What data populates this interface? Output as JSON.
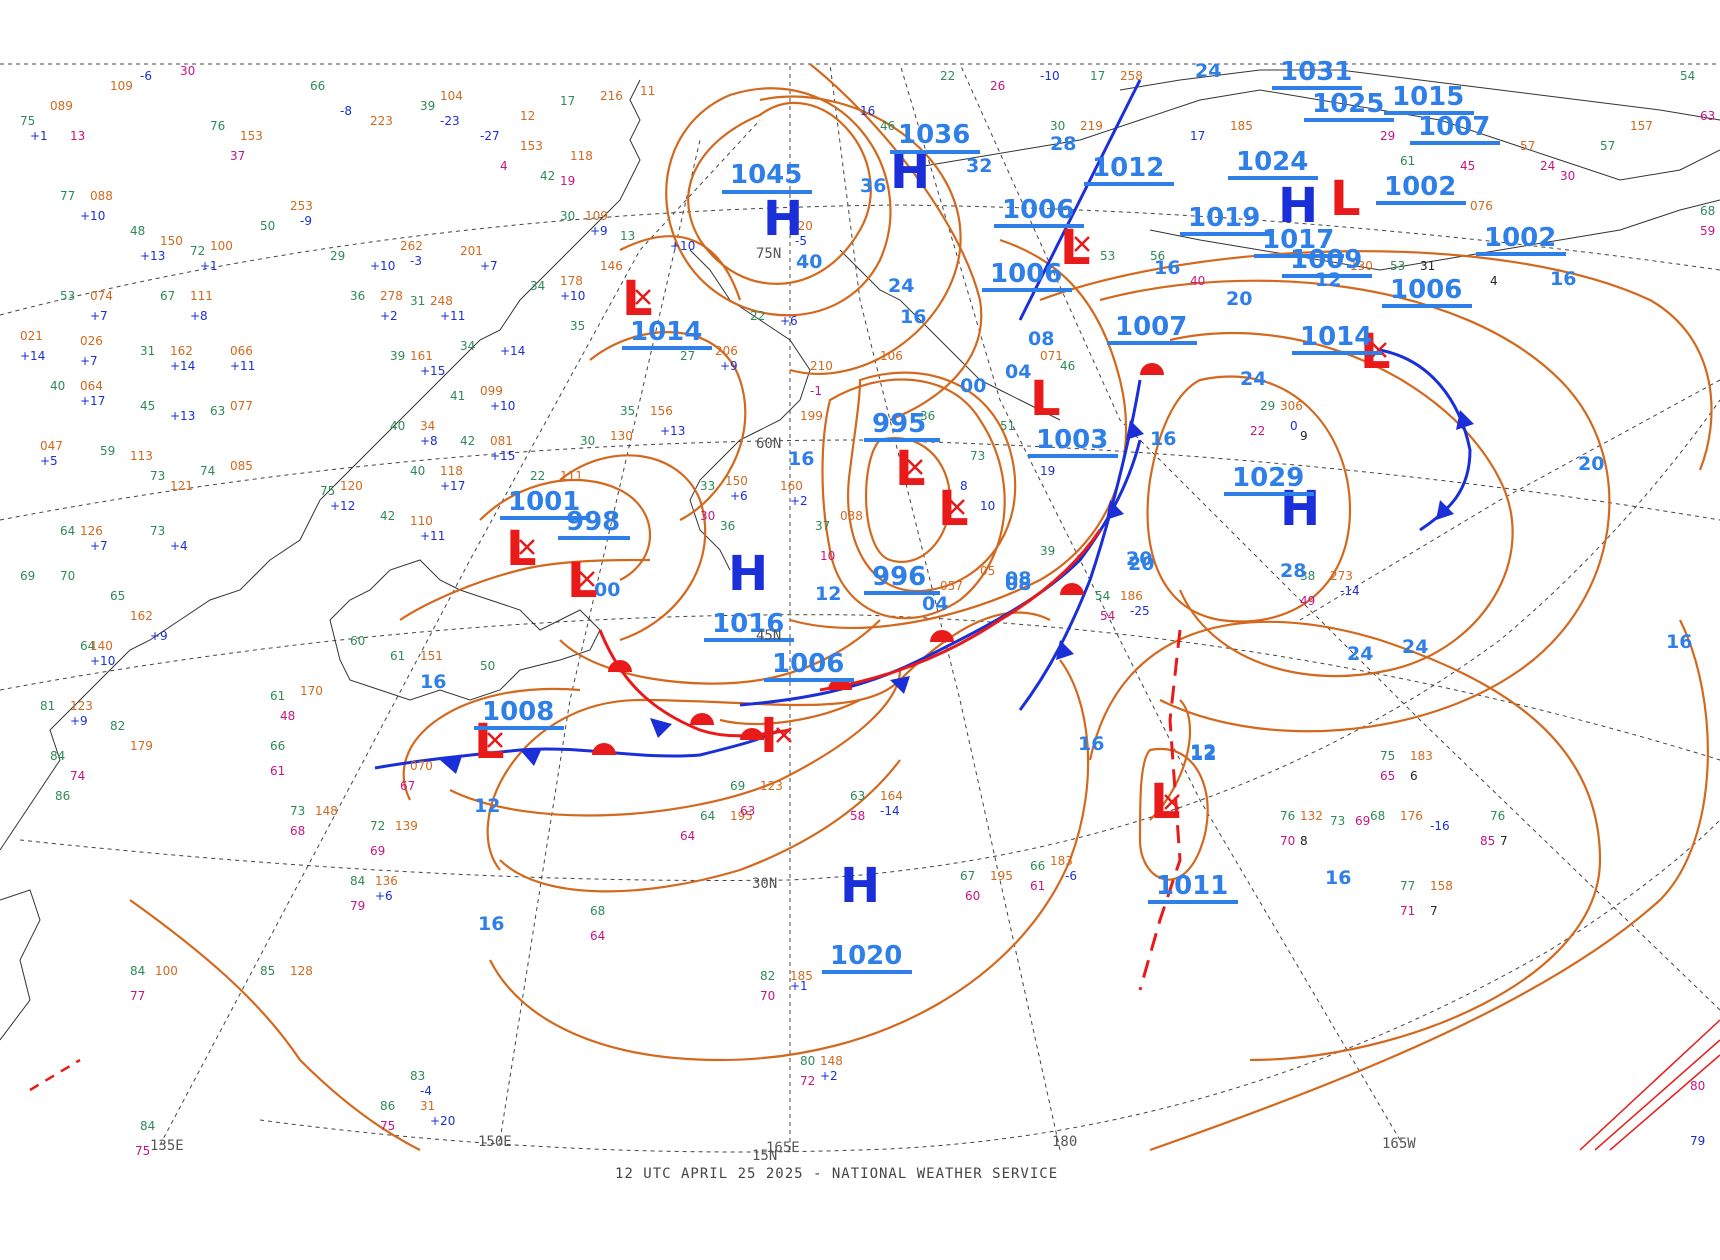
{
  "footer": "12 UTC APRIL 25 2025 - NATIONAL WEATHER SERVICE",
  "colors": {
    "isobar": "#d2691e",
    "pressure_label": "#2f7fe8",
    "high": "#1a2fd8",
    "low": "#e81a1a",
    "warm_front": "#e81a1a",
    "cold_front": "#1a2fd8"
  },
  "grid_labels": {
    "longitudes": [
      "135E",
      "150E",
      "165E",
      "180",
      "165W"
    ],
    "latitudes": [
      "75N",
      "60N",
      "45N",
      "30N",
      "15N"
    ]
  },
  "highs": [
    {
      "label": "H",
      "pressure": "1045"
    },
    {
      "label": "H",
      "pressure": "1036"
    },
    {
      "label": "H",
      "pressure": "1016"
    },
    {
      "label": "H",
      "pressure": "1029"
    },
    {
      "label": "H",
      "pressure": "1020"
    },
    {
      "label": "H",
      "pressure": "1024"
    }
  ],
  "lows": [
    {
      "label": "L",
      "pressure": "1014"
    },
    {
      "label": "L",
      "pressure": "1001"
    },
    {
      "label": "L",
      "pressure": "998"
    },
    {
      "label": "L",
      "pressure": "1008"
    },
    {
      "label": "L",
      "pressure": "1006"
    },
    {
      "label": "L",
      "pressure": "995"
    },
    {
      "label": "L",
      "pressure": "996"
    },
    {
      "label": "L",
      "pressure": "1003"
    },
    {
      "label": "L",
      "pressure": "1011"
    },
    {
      "label": "L",
      "pressure": "1014"
    },
    {
      "label": "L",
      "pressure": "1007"
    }
  ],
  "pressure_boxes": [
    "1045",
    "1036",
    "1031",
    "1025",
    "1015",
    "1007",
    "1012",
    "1024",
    "1019",
    "1017",
    "1009",
    "1002",
    "1002",
    "1006",
    "1006",
    "1006",
    "1014",
    "1007",
    "995",
    "1003",
    "996",
    "1029",
    "1001",
    "998",
    "1016",
    "1006",
    "1008",
    "1020",
    "1011",
    "1007"
  ],
  "isobar_values": [
    "40",
    "36",
    "32",
    "28",
    "24",
    "20",
    "16",
    "12",
    "08",
    "04",
    "00",
    "16",
    "24",
    "20",
    "16",
    "12",
    "16",
    "24",
    "24",
    "20",
    "16",
    "28",
    "16",
    "12",
    "08",
    "04",
    "00",
    "16",
    "12",
    "16",
    "16",
    "16",
    "24",
    "20",
    "12",
    "08"
  ]
}
